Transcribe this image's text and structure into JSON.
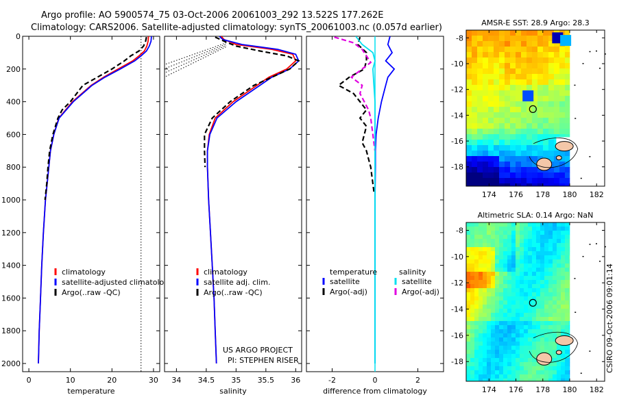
{
  "header": {
    "line1": "Argo profile: AO 5900574_75 03-Oct-2006 20061003_292 13.522S 177.262E",
    "line2": "Climatology: CARS2006. Satellite-adjusted climatology: synTS_20061003.nc (0.057d earlier)"
  },
  "side_text": "CSIRO 09-Oct-2006 09:01:14",
  "credit": {
    "line1": "US ARGO PROJECT",
    "line2": "PI: STEPHEN RISER"
  },
  "colors": {
    "climatology": "#ff0000",
    "satellite": "#0000ff",
    "argo": "#000000",
    "salinity_sat": "#00e0f0",
    "salinity_argo": "#e000e0"
  },
  "chart_data": [
    {
      "type": "line",
      "id": "temperature",
      "xlabel": "temperature",
      "xlim": [
        -1.5,
        31.5
      ],
      "ylim": [
        2050,
        0
      ],
      "xticks": [
        0,
        10,
        20,
        30
      ],
      "yticks": [
        0,
        200,
        400,
        600,
        800,
        1000,
        1200,
        1400,
        1600,
        1800,
        2000
      ],
      "reference_line": {
        "x": 27,
        "style": "dotted"
      },
      "legend": [
        {
          "label": "climatology",
          "color": "#ff0000"
        },
        {
          "label": "satellite-adjusted climatology",
          "color": "#0000ff"
        },
        {
          "label": "Argo(..raw -QC)",
          "color": "#000000"
        }
      ],
      "series": [
        {
          "name": "climatology",
          "color": "#ff0000",
          "style": "solid",
          "depth": [
            0,
            30,
            60,
            90,
            120,
            150,
            200,
            250,
            300,
            400,
            500,
            600,
            700,
            800,
            900,
            1000,
            1200,
            1400,
            1600,
            1800,
            2000
          ],
          "values": [
            28.8,
            28.7,
            28.4,
            27.8,
            26.5,
            25,
            21.5,
            18,
            15,
            10.5,
            7.2,
            6,
            5.2,
            4.8,
            4.4,
            4,
            3.5,
            3.1,
            2.8,
            2.5,
            2.3
          ]
        },
        {
          "name": "satellite-adjusted climatology",
          "color": "#0000ff",
          "style": "solid",
          "depth": [
            0,
            30,
            60,
            90,
            120,
            150,
            200,
            250,
            300,
            400,
            500,
            600,
            700,
            800,
            900,
            1000,
            1200,
            1400,
            1600,
            1800,
            2000
          ],
          "values": [
            29.5,
            29.4,
            29,
            28.3,
            27,
            25.5,
            22,
            18.3,
            15.2,
            10.7,
            7.3,
            6,
            5.2,
            4.8,
            4.4,
            4,
            3.5,
            3.1,
            2.8,
            2.5,
            2.3
          ]
        },
        {
          "name": "Argo(..raw -QC)",
          "color": "#000000",
          "style": "dashed",
          "depth": [
            5,
            30,
            60,
            90,
            120,
            150,
            200,
            250,
            300,
            350,
            400,
            450,
            500,
            600,
            700,
            800,
            900,
            1000
          ],
          "values": [
            28.3,
            28.1,
            27.6,
            26.5,
            24.5,
            23,
            20,
            16.5,
            13,
            11.5,
            10,
            8,
            7,
            5.8,
            5,
            4.6,
            4.3,
            3.9
          ]
        }
      ]
    },
    {
      "type": "line",
      "id": "salinity",
      "xlabel": "salinity",
      "xlim": [
        33.8,
        36.1
      ],
      "ylim": [
        2050,
        0
      ],
      "xticks": [
        34,
        34.5,
        35,
        35.5,
        36
      ],
      "reference_line": {
        "x": 36.2,
        "style": "dotted"
      },
      "legend": [
        {
          "label": "climatology",
          "color": "#ff0000"
        },
        {
          "label": "satellite adj. clim.",
          "color": "#0000ff"
        },
        {
          "label": "Argo(..raw -QC)",
          "color": "#000000"
        }
      ],
      "series": [
        {
          "name": "climatology",
          "color": "#ff0000",
          "style": "solid",
          "depth": [
            0,
            20,
            50,
            80,
            110,
            150,
            200,
            250,
            300,
            400,
            500,
            600,
            700,
            800,
            1000,
            1200,
            1400,
            1600,
            1800,
            2000
          ],
          "values": [
            34.75,
            34.8,
            35.0,
            35.6,
            35.95,
            36.0,
            35.85,
            35.55,
            35.35,
            34.95,
            34.65,
            34.55,
            34.52,
            34.52,
            34.54,
            34.57,
            34.6,
            34.63,
            34.65,
            34.67
          ]
        },
        {
          "name": "satellite adj. clim.",
          "color": "#0000ff",
          "style": "solid",
          "depth": [
            0,
            20,
            50,
            80,
            110,
            150,
            200,
            250,
            300,
            400,
            500,
            600,
            700,
            800,
            1000,
            1200,
            1400,
            1600,
            1800,
            2000
          ],
          "values": [
            34.72,
            34.78,
            35.1,
            35.7,
            36.0,
            36.05,
            35.9,
            35.6,
            35.4,
            35.0,
            34.68,
            34.56,
            34.52,
            34.52,
            34.54,
            34.57,
            34.6,
            34.63,
            34.65,
            34.67
          ]
        },
        {
          "name": "Argo(..raw -QC)",
          "color": "#000000",
          "style": "dashed",
          "depth": [
            5,
            30,
            60,
            90,
            120,
            150,
            200,
            250,
            300,
            400,
            500,
            600,
            700,
            800
          ],
          "values": [
            34.65,
            34.8,
            35.0,
            35.4,
            35.85,
            36.05,
            35.9,
            35.6,
            35.3,
            34.9,
            34.6,
            34.47,
            34.47,
            34.48
          ]
        }
      ]
    },
    {
      "type": "line",
      "id": "difference",
      "xlabel": "difference from climatology",
      "xlim": [
        -3.2,
        3.2
      ],
      "ylim": [
        2050,
        0
      ],
      "xticks": [
        -2,
        0,
        2
      ],
      "legend_left_title": "temperature",
      "legend_right_title": "salinity",
      "legend": [
        {
          "label": "satellite",
          "color": "#0000ff",
          "group": "temperature"
        },
        {
          "label": "Argo(-adj)",
          "color": "#000000",
          "group": "temperature"
        },
        {
          "label": "satellite",
          "color": "#00e0f0",
          "group": "salinity"
        },
        {
          "label": "Argo(-adj)",
          "color": "#e000e0",
          "group": "salinity"
        }
      ],
      "series": [
        {
          "name": "temperature satellite",
          "color": "#0000ff",
          "style": "solid",
          "depth": [
            0,
            50,
            100,
            150,
            200,
            250,
            300,
            400,
            500,
            600,
            700,
            800,
            900,
            1000,
            1200,
            1400,
            1600,
            1800,
            2000
          ],
          "values": [
            0.7,
            0.6,
            0.8,
            0.5,
            0.9,
            0.6,
            0.5,
            0.3,
            0.15,
            0.05,
            0.02,
            0.02,
            0.01,
            0.0,
            0.0,
            0.0,
            0.0,
            0.0,
            0.0
          ]
        },
        {
          "name": "temperature Argo(-adj)",
          "color": "#000000",
          "style": "dashed",
          "depth": [
            5,
            50,
            100,
            150,
            200,
            250,
            300,
            350,
            400,
            450,
            500,
            550,
            600,
            650,
            700,
            750,
            800,
            850,
            900,
            950
          ],
          "values": [
            -0.7,
            -0.8,
            -0.4,
            -0.4,
            -0.5,
            -1.2,
            -1.7,
            -1.0,
            -0.7,
            -0.4,
            -0.7,
            -0.4,
            -0.5,
            -0.6,
            -0.4,
            -0.3,
            -0.2,
            -0.15,
            -0.1,
            -0.05
          ]
        },
        {
          "name": "salinity satellite",
          "color": "#00e0f0",
          "style": "solid",
          "depth": [
            0,
            50,
            100,
            150,
            200,
            300,
            400,
            500,
            600,
            700,
            800,
            1000,
            1200,
            1500,
            2000
          ],
          "values": [
            -0.9,
            -0.6,
            -0.1,
            0.0,
            -0.1,
            -0.05,
            0.0,
            0.0,
            0.0,
            0.0,
            0.0,
            0.0,
            0.0,
            0.0,
            0.0
          ]
        },
        {
          "name": "salinity Argo(-adj)",
          "color": "#e000e0",
          "style": "dashed",
          "depth": [
            5,
            40,
            80,
            120,
            160,
            200,
            250,
            300,
            350,
            400,
            450,
            500,
            550,
            600,
            650,
            700
          ],
          "values": [
            -1.9,
            -1.0,
            -0.6,
            -0.4,
            -0.2,
            -0.6,
            -1.1,
            -0.6,
            -0.7,
            -0.5,
            -0.3,
            -0.2,
            -0.15,
            -0.1,
            -0.05,
            0.0
          ]
        }
      ]
    },
    {
      "type": "heatmap",
      "id": "sst_map",
      "title": "AMSR-E SST: 28.9 Argo: 28.3",
      "xlim": [
        172.3,
        182.6
      ],
      "ylim": [
        -19.5,
        -7.4
      ],
      "xticks": [
        174,
        176,
        178,
        180,
        182
      ],
      "yticks": [
        -8,
        -10,
        -12,
        -14,
        -16,
        -18
      ],
      "float_position": {
        "lon": 177.262,
        "lat": -13.522
      }
    },
    {
      "type": "heatmap",
      "id": "sla_map",
      "title": "Altimetric SLA: 0.14 Argo: NaN",
      "xlim": [
        172.3,
        182.6
      ],
      "ylim": [
        -19.5,
        -7.4
      ],
      "xticks": [
        174,
        176,
        178,
        180,
        182
      ],
      "yticks": [
        -8,
        -10,
        -12,
        -14,
        -16,
        -18
      ],
      "float_position": {
        "lon": 177.262,
        "lat": -13.522
      }
    }
  ]
}
